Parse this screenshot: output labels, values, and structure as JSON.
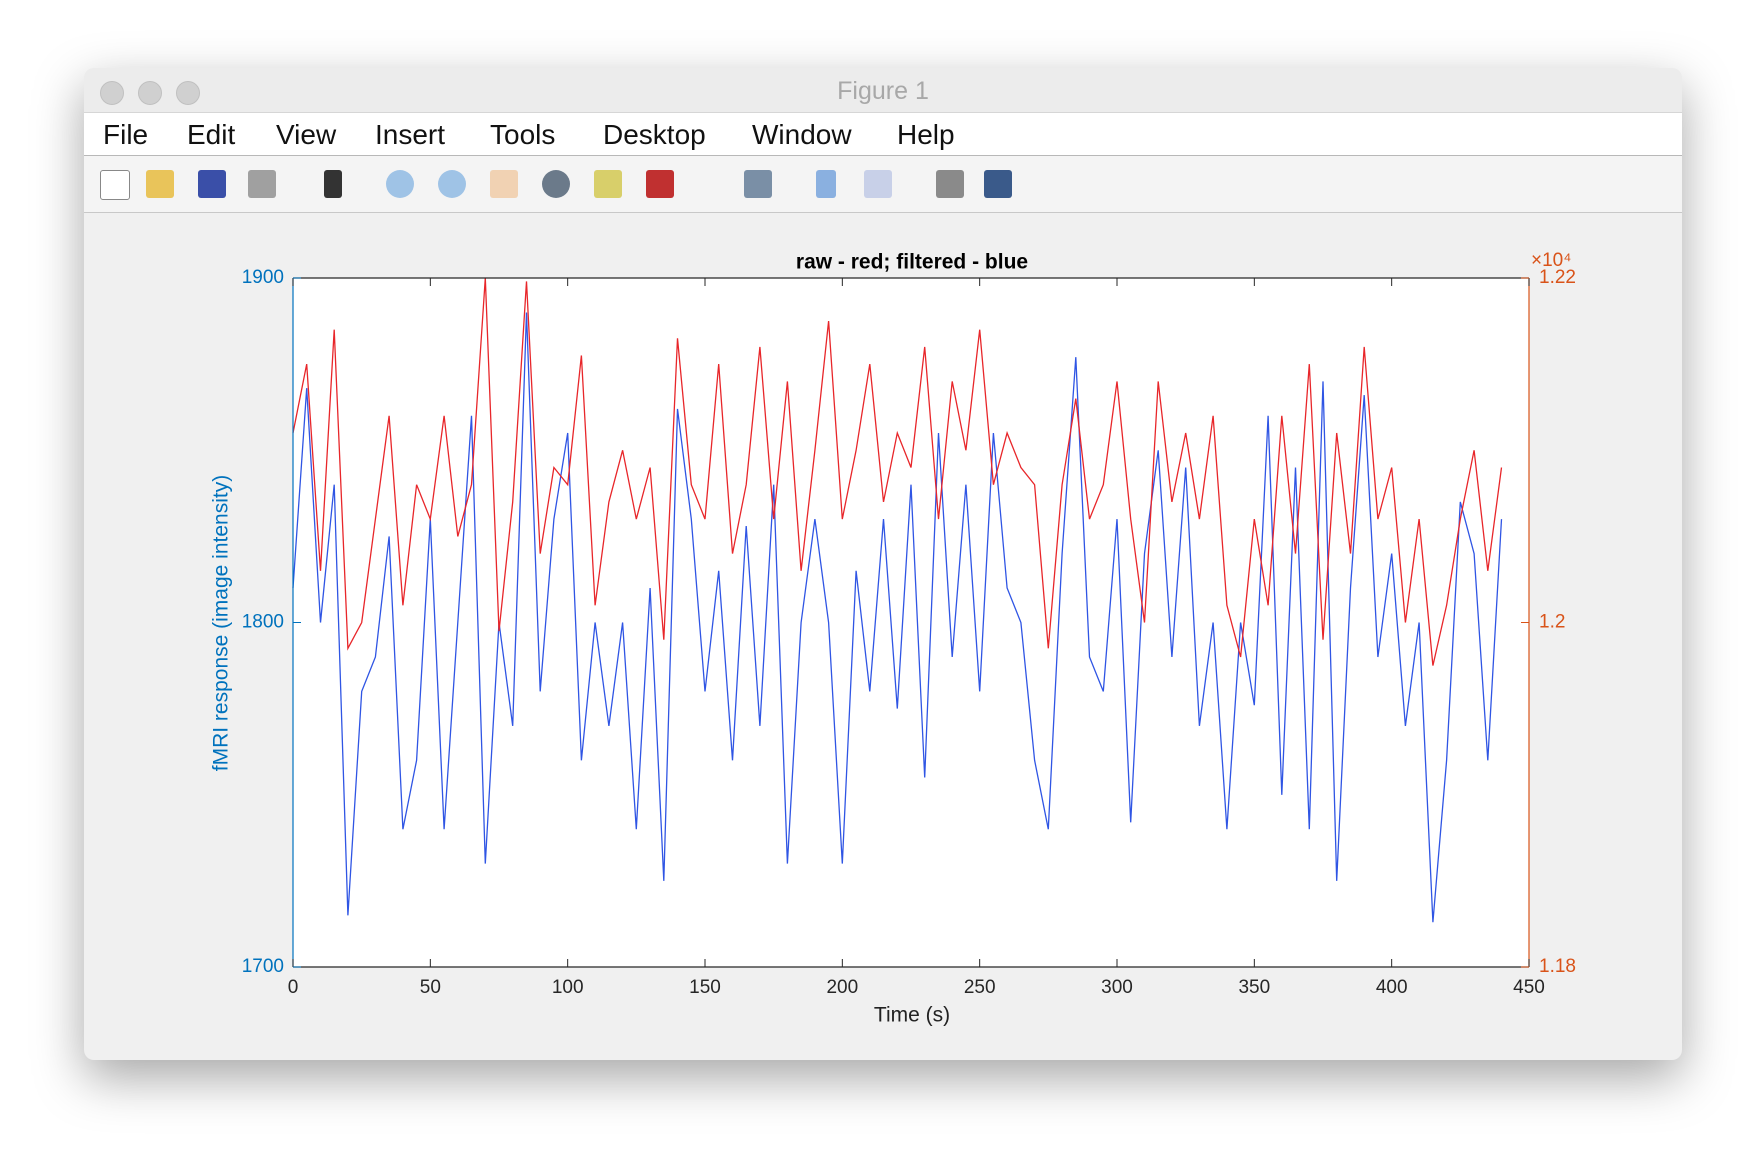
{
  "window": {
    "title": "Figure 1"
  },
  "menu": [
    "File",
    "Edit",
    "View",
    "Insert",
    "Tools",
    "Desktop",
    "Window",
    "Help"
  ],
  "chart_data": {
    "type": "line",
    "title": "raw - red; filtered - blue",
    "xlabel": "Time (s)",
    "ylabel": "fMRI response (image intensity)",
    "xlim": [
      0,
      450
    ],
    "xticks": [
      0,
      50,
      100,
      150,
      200,
      250,
      300,
      350,
      400,
      450
    ],
    "ylim": [
      1700,
      1900
    ],
    "yticks": [
      1700,
      1800,
      1900
    ],
    "y2lim": [
      11800,
      12200
    ],
    "y2ticks": [
      {
        "value": 11800,
        "label": "1.18"
      },
      {
        "value": 12000,
        "label": "1.2"
      },
      {
        "value": 12200,
        "label": "1.22"
      }
    ],
    "y2_scale_label": "×10⁴",
    "y_axis_color": "#0072bd",
    "y2_axis_color": "#d95319",
    "x": [
      0,
      5,
      10,
      15,
      20,
      25,
      30,
      35,
      40,
      45,
      50,
      55,
      60,
      65,
      70,
      75,
      80,
      85,
      90,
      95,
      100,
      105,
      110,
      115,
      120,
      125,
      130,
      135,
      140,
      145,
      150,
      155,
      160,
      165,
      170,
      175,
      180,
      185,
      190,
      195,
      200,
      205,
      210,
      215,
      220,
      225,
      230,
      235,
      240,
      245,
      250,
      255,
      260,
      265,
      270,
      275,
      280,
      285,
      290,
      295,
      300,
      305,
      310,
      315,
      320,
      325,
      330,
      335,
      340,
      345,
      350,
      355,
      360,
      365,
      370,
      375,
      380,
      385,
      390,
      395,
      400,
      405,
      410,
      415,
      420,
      425,
      430,
      435,
      440
    ],
    "series": [
      {
        "name": "filtered",
        "color": "#2f55e4",
        "axis": "y",
        "values": [
          1810,
          1868,
          1800,
          1840,
          1715,
          1780,
          1790,
          1825,
          1740,
          1760,
          1830,
          1740,
          1800,
          1860,
          1730,
          1800,
          1770,
          1890,
          1780,
          1830,
          1855,
          1760,
          1800,
          1770,
          1800,
          1740,
          1810,
          1725,
          1862,
          1830,
          1780,
          1815,
          1760,
          1828,
          1770,
          1840,
          1730,
          1800,
          1830,
          1800,
          1730,
          1815,
          1780,
          1830,
          1775,
          1840,
          1755,
          1855,
          1790,
          1840,
          1780,
          1855,
          1810,
          1800,
          1760,
          1740,
          1820,
          1877,
          1790,
          1780,
          1830,
          1742,
          1820,
          1850,
          1790,
          1845,
          1770,
          1800,
          1740,
          1800,
          1776,
          1860,
          1750,
          1845,
          1740,
          1870,
          1725,
          1810,
          1866,
          1790,
          1820,
          1770,
          1800,
          1713,
          1760,
          1835,
          1820,
          1760,
          1830
        ]
      },
      {
        "name": "raw",
        "color": "#e8262a",
        "axis": "y2",
        "values": [
          12110,
          12150,
          12030,
          12170,
          11985,
          12000,
          12060,
          12120,
          12010,
          12080,
          12060,
          12120,
          12050,
          12080,
          12200,
          11995,
          12070,
          12198,
          12040,
          12090,
          12080,
          12155,
          12010,
          12070,
          12100,
          12060,
          12090,
          11990,
          12165,
          12080,
          12060,
          12150,
          12040,
          12080,
          12160,
          12060,
          12140,
          12030,
          12100,
          12175,
          12060,
          12100,
          12150,
          12070,
          12110,
          12090,
          12160,
          12060,
          12140,
          12100,
          12170,
          12080,
          12110,
          12090,
          12080,
          11985,
          12080,
          12130,
          12060,
          12080,
          12140,
          12060,
          12000,
          12140,
          12070,
          12110,
          12060,
          12120,
          12010,
          11980,
          12060,
          12010,
          12120,
          12040,
          12150,
          11990,
          12110,
          12040,
          12160,
          12060,
          12090,
          12000,
          12060,
          11975,
          12010,
          12060,
          12100,
          12030,
          12090
        ]
      }
    ]
  }
}
